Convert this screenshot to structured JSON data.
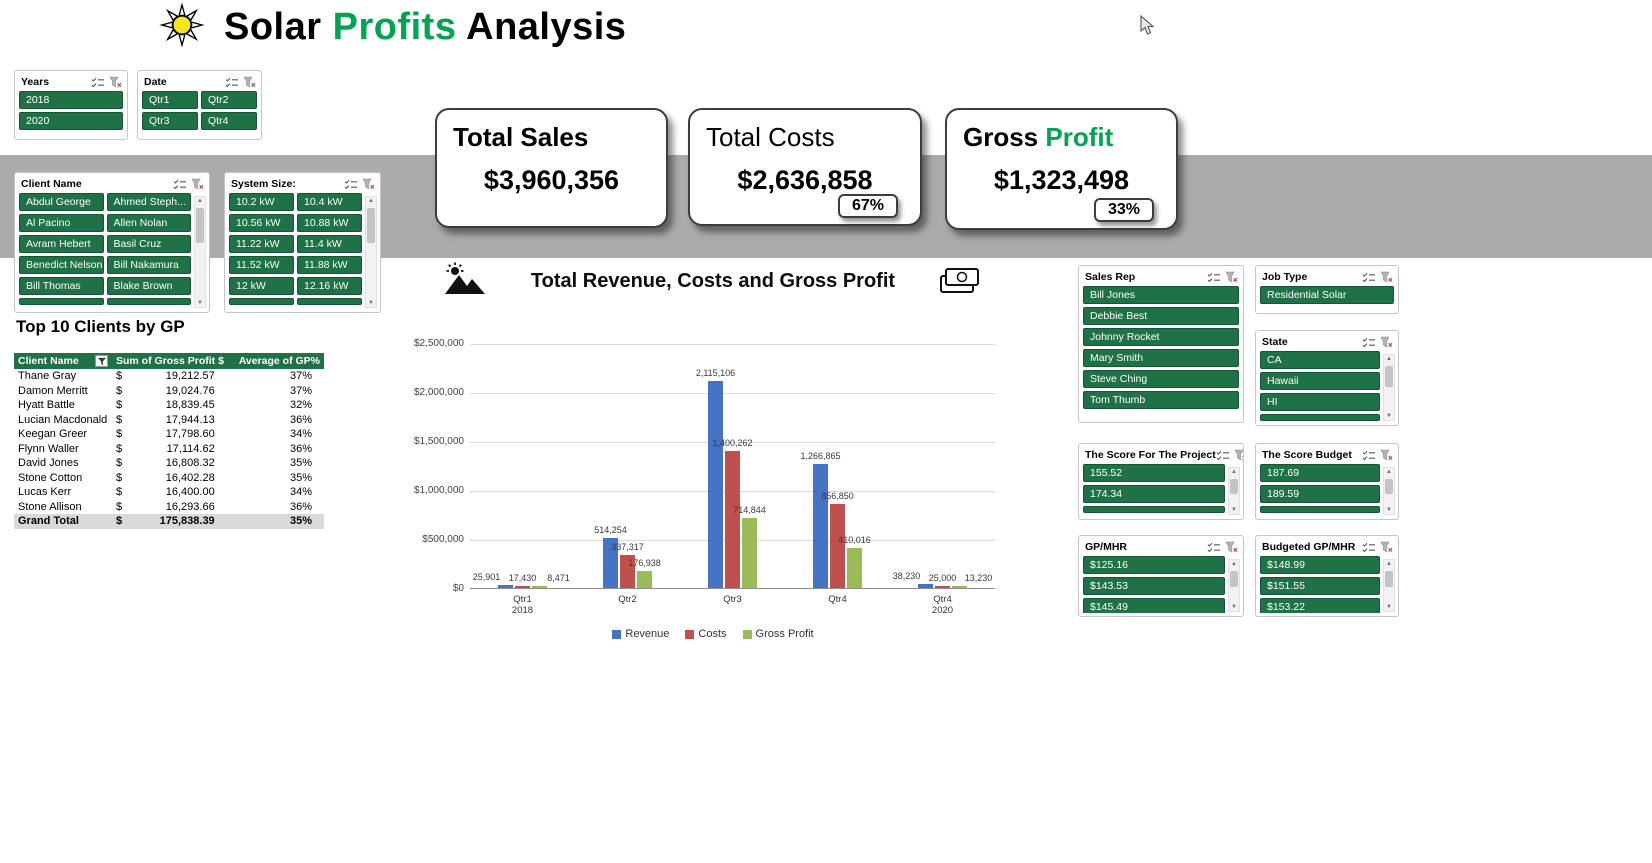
{
  "colors": {
    "slicer_green": "#1F7246",
    "accent_green": "#00A550",
    "band_gray": "#ABABAB"
  },
  "header": {
    "title_part1": "Solar",
    "title_part2": "Profits",
    "title_part3": "Analysis"
  },
  "icons": {
    "title": "sun-icon",
    "chart_left": "mountain-sun-icon",
    "chart_right": "money-icon",
    "slicer_header": [
      "multiselect-icon",
      "clear-filter-icon"
    ],
    "table_header": "filter-icon"
  },
  "slicers": {
    "years": {
      "title": "Years",
      "items": [
        "2018",
        "2020"
      ]
    },
    "date": {
      "title": "Date",
      "items": [
        "Qtr1",
        "Qtr2",
        "Qtr3",
        "Qtr4"
      ]
    },
    "client_name": {
      "title": "Client Name",
      "items": [
        "Abdul George",
        "Ahmed Steph...",
        "Al Pacino",
        "Allen Nolan",
        "Avram Hebert",
        "Basil Cruz",
        "Benedict Nelson",
        "Bill Nakamura",
        "Bill Thomas",
        "Blake Brown"
      ]
    },
    "system_size": {
      "title": "System Size:",
      "items": [
        "10.2 kW",
        "10.4 kW",
        "10.56 kW",
        "10.88 kW",
        "11.22 kW",
        "11.4 kW",
        "11.52 kW",
        "11.88 kW",
        "12 kW",
        "12.16 kW"
      ]
    },
    "sales_rep": {
      "title": "Sales Rep",
      "items": [
        "Bill Jones",
        "Debbie Best",
        "Johnny Rocket",
        "Mary Smith",
        "Steve Ching",
        "Tom Thumb"
      ]
    },
    "job_type": {
      "title": "Job Type",
      "items": [
        "Residential Solar"
      ]
    },
    "state": {
      "title": "State",
      "items": [
        "CA",
        "Hawaii",
        "HI"
      ]
    },
    "score_project": {
      "title": "The Score For The Project",
      "items": [
        "155.52",
        "174.34"
      ]
    },
    "score_budget": {
      "title": "The Score Budget",
      "items": [
        "187.69",
        "189.59"
      ]
    },
    "gp_mhr": {
      "title": "GP/MHR",
      "items": [
        "$125.16",
        "$143.53",
        "$145.49"
      ]
    },
    "budgeted_gp_mhr": {
      "title": "Budgeted GP/MHR",
      "items": [
        "$148.99",
        "$151.55",
        "$153.22"
      ]
    }
  },
  "kpis": [
    {
      "title": "Total Sales",
      "value": "$3,960,356"
    },
    {
      "title": "Total Costs",
      "value": "$2,636,858",
      "badge": "67%"
    },
    {
      "title_black": "Gross",
      "title_green": "Profit",
      "value": "$1,323,498",
      "badge": "33%"
    }
  ],
  "table": {
    "heading": "Top 10 Clients by GP",
    "columns": [
      "Client Name",
      "Sum of Gross Profit $",
      "Average of GP%"
    ],
    "currency": "$",
    "rows": [
      [
        "Thane Gray",
        "19,212.57",
        "37%"
      ],
      [
        "Damon Merritt",
        "19,024.76",
        "37%"
      ],
      [
        "Hyatt Battle",
        "18,839.45",
        "32%"
      ],
      [
        "Lucian Macdonald",
        "17,944.13",
        "36%"
      ],
      [
        "Keegan Greer",
        "17,798.60",
        "34%"
      ],
      [
        "Flynn Waller",
        "17,114.62",
        "36%"
      ],
      [
        "David Jones",
        "16,808.32",
        "35%"
      ],
      [
        "Stone Cotton",
        "16,402.28",
        "35%"
      ],
      [
        "Lucas Kerr",
        "16,400.00",
        "34%"
      ],
      [
        "Stone Allison",
        "16,293.66",
        "36%"
      ]
    ],
    "total_row": [
      "Grand Total",
      "175,838.39",
      "35%"
    ]
  },
  "chart_data": {
    "type": "bar",
    "title": "Total Revenue, Costs and Gross Profit",
    "categories": [
      [
        "Qtr1",
        "2018"
      ],
      [
        "Qtr2"
      ],
      [
        "Qtr3"
      ],
      [
        "Qtr4"
      ],
      [
        "Qtr4",
        "2020"
      ]
    ],
    "series": [
      {
        "name": "Revenue",
        "color": "#4472C4",
        "values": [
          25901,
          514254,
          2115106,
          1266865,
          38230
        ],
        "labels": [
          "25,901",
          "514,254",
          "2,115,106",
          "1,266,865",
          "38,230"
        ]
      },
      {
        "name": "Costs",
        "color": "#C0504D",
        "values": [
          17430,
          337317,
          1400262,
          856850,
          25000
        ],
        "labels": [
          "17,430",
          "337,317",
          "1,400,262",
          "856,850",
          "25,000"
        ]
      },
      {
        "name": "Gross Profit",
        "color": "#9BBB59",
        "values": [
          8471,
          176938,
          714844,
          410016,
          13230
        ],
        "labels": [
          "8,471",
          "176,938",
          "714,844",
          "410,016",
          "13,230"
        ]
      }
    ],
    "y_ticks": [
      "$2,500,000",
      "$2,000,000",
      "$1,500,000",
      "$1,000,000",
      "$500,000",
      "$0"
    ],
    "ylim": [
      0,
      2500000
    ],
    "grid": true,
    "legend_position": "bottom",
    "legend": [
      "Revenue",
      "Costs",
      "Gross Profit"
    ]
  }
}
